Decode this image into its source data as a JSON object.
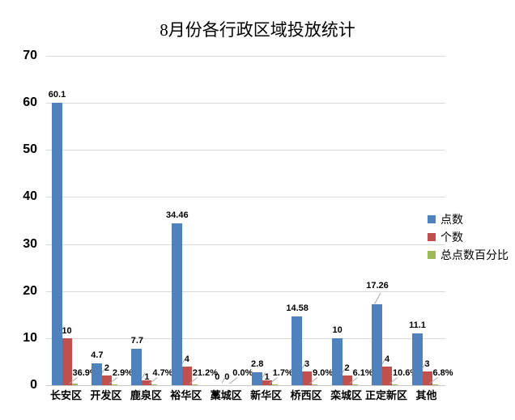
{
  "chart_data": {
    "type": "bar",
    "title": "8月份各行政区域投放统计",
    "categories": [
      "长安区",
      "开发区",
      "鹿泉区",
      "裕华区",
      "藁城区",
      "新华区",
      "桥西区",
      "栾城区",
      "正定新区",
      "其他"
    ],
    "series": [
      {
        "name": "点数",
        "color": "#4F81BD",
        "values": [
          60.1,
          4.7,
          7.7,
          34.46,
          0,
          2.8,
          14.58,
          10,
          17.26,
          11.1
        ],
        "labels": [
          "60.1",
          "4.7",
          "7.7",
          "34.46",
          "0",
          "2.8",
          "14.58",
          "10",
          "17.26",
          "11.1"
        ]
      },
      {
        "name": "个数",
        "color": "#C0504D",
        "values": [
          10,
          2,
          1,
          4,
          0,
          1,
          3,
          2,
          4,
          3
        ],
        "labels": [
          "10",
          "2",
          "1",
          "4",
          "0",
          "1",
          "3",
          "2",
          "4",
          "3"
        ]
      },
      {
        "name": "总点数百分比",
        "color": "#9BBB59",
        "values_percent": [
          36.9,
          2.9,
          4.7,
          21.2,
          0.0,
          1.7,
          9.0,
          6.1,
          10.6,
          6.8
        ],
        "axis_values": [
          0.369,
          0.029,
          0.047,
          0.212,
          0,
          0.017,
          0.09,
          0.061,
          0.106,
          0.068
        ],
        "labels": [
          "36.9%",
          "2.9%",
          "4.7%",
          "21.2%",
          "0.0%",
          "1.7%",
          "9.0%",
          "6.1%",
          "10.6%",
          "6.8%"
        ]
      }
    ],
    "xlabel": "",
    "ylabel": "",
    "ylim": [
      0,
      70
    ],
    "yticks": [
      0,
      10,
      20,
      30,
      40,
      50,
      60,
      70
    ],
    "grid": "horizontal",
    "legend_position": "right",
    "legend": [
      "点数",
      "个数",
      "总点数百分比"
    ]
  },
  "colors": {
    "grid": "#D9D9D9",
    "baseline": "#C8C8C8",
    "leader_line": "#A6A6A6",
    "text": "#000000",
    "background": "#FFFFFF"
  }
}
